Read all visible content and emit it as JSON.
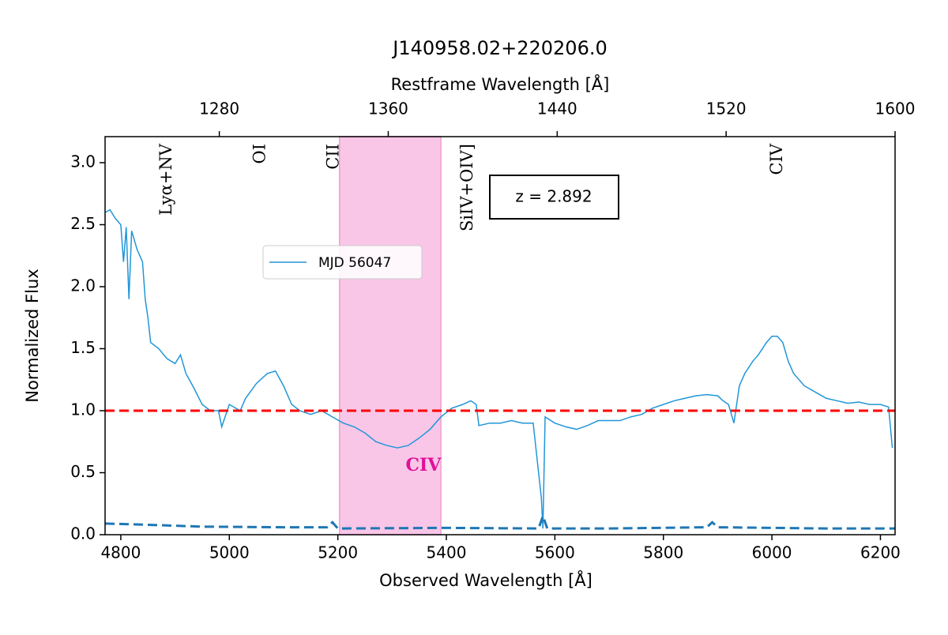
{
  "chart_data": {
    "type": "line",
    "title": "J140958.02+220206.0",
    "xlabel": "Observed Wavelength [Å]",
    "x2label": "Restframe Wavelength [Å]",
    "ylabel": "Normalized Flux",
    "xlim": [
      4771,
      6227
    ],
    "x2lim": [
      1225.9,
      1600
    ],
    "ylim": [
      0,
      3.21
    ],
    "xticks": [
      4800,
      5000,
      5200,
      5400,
      5600,
      5800,
      6000,
      6200
    ],
    "x2ticks": [
      1280,
      1360,
      1440,
      1520,
      1600
    ],
    "yticks": [
      {
        "value": 0,
        "label": "0.0"
      },
      0.5,
      {
        "value": 1,
        "label": "1.0"
      },
      1.5,
      {
        "value": 2,
        "label": "2.0"
      },
      2.5,
      {
        "value": 3,
        "label": "3.0"
      }
    ],
    "annotation": "z = 2.892",
    "hline": {
      "value": 1,
      "color": "#ff0000"
    },
    "span": {
      "range": [
        5203,
        5390
      ],
      "color": "#f9c6e8",
      "label": "CIV",
      "label_color": "#e0109a"
    },
    "lines": [
      {
        "label": "Lyα+NV",
        "wavelength": 4885
      },
      {
        "label": "OI",
        "wavelength": 5058
      },
      {
        "label": "CII",
        "wavelength": 5193
      },
      {
        "label": "SiIV+OIV]",
        "wavelength": 5440
      },
      {
        "label": "CIV",
        "wavelength": 6011
      }
    ],
    "series": [
      {
        "name": "MJD 56047",
        "color": "#2196d8",
        "dashed": false,
        "x": [
          4772,
          4780,
          4790,
          4800,
          4805,
          4810,
          4815,
          4820,
          4830,
          4840,
          4845,
          4850,
          4855,
          4870,
          4885,
          4900,
          4910,
          4920,
          4935,
          4950,
          4965,
          4980,
          4986,
          5000,
          5020,
          5030,
          5050,
          5070,
          5085,
          5100,
          5115,
          5130,
          5150,
          5170,
          5190,
          5210,
          5230,
          5250,
          5270,
          5290,
          5310,
          5330,
          5350,
          5370,
          5390,
          5410,
          5430,
          5445,
          5455,
          5460,
          5480,
          5500,
          5520,
          5540,
          5560,
          5575,
          5578,
          5582,
          5600,
          5620,
          5640,
          5660,
          5680,
          5700,
          5720,
          5740,
          5760,
          5780,
          5800,
          5820,
          5840,
          5860,
          5880,
          5900,
          5910,
          5920,
          5930,
          5940,
          5950,
          5965,
          5975,
          5990,
          6000,
          6010,
          6020,
          6030,
          6040,
          6060,
          6080,
          6100,
          6120,
          6140,
          6160,
          6180,
          6200,
          6215,
          6222
        ],
        "values": [
          2.6,
          2.62,
          2.55,
          2.5,
          2.2,
          2.48,
          1.9,
          2.45,
          2.3,
          2.2,
          1.9,
          1.75,
          1.55,
          1.5,
          1.42,
          1.38,
          1.45,
          1.3,
          1.18,
          1.05,
          1.0,
          1.0,
          0.87,
          1.05,
          1.0,
          1.1,
          1.22,
          1.3,
          1.32,
          1.2,
          1.05,
          1.0,
          0.97,
          1.0,
          0.95,
          0.9,
          0.87,
          0.82,
          0.75,
          0.72,
          0.7,
          0.72,
          0.78,
          0.85,
          0.95,
          1.02,
          1.05,
          1.08,
          1.05,
          0.88,
          0.9,
          0.9,
          0.92,
          0.9,
          0.9,
          0.3,
          0.05,
          0.95,
          0.9,
          0.87,
          0.85,
          0.88,
          0.92,
          0.92,
          0.92,
          0.95,
          0.97,
          1.02,
          1.05,
          1.08,
          1.1,
          1.12,
          1.13,
          1.12,
          1.08,
          1.05,
          0.9,
          1.2,
          1.3,
          1.4,
          1.45,
          1.55,
          1.6,
          1.6,
          1.55,
          1.4,
          1.3,
          1.2,
          1.15,
          1.1,
          1.08,
          1.06,
          1.07,
          1.05,
          1.05,
          1.03,
          0.7
        ]
      },
      {
        "color": "#1f77b4",
        "dashed": true,
        "x": [
          4771,
          4850,
          4950,
          5100,
          5180,
          5190,
          5200,
          5400,
          5570,
          5578,
          5586,
          5700,
          5880,
          5890,
          5900,
          6100,
          6227
        ],
        "values": [
          0.09,
          0.08,
          0.065,
          0.06,
          0.06,
          0.1,
          0.05,
          0.055,
          0.05,
          0.15,
          0.05,
          0.05,
          0.06,
          0.1,
          0.06,
          0.05,
          0.05
        ]
      }
    ]
  }
}
